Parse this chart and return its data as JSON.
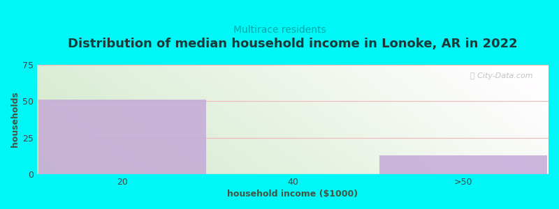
{
  "title": "Distribution of median household income in Lonoke, AR in 2022",
  "subtitle": "Multirace residents",
  "categories": [
    "20",
    "40",
    ">50"
  ],
  "values": [
    51,
    0,
    13
  ],
  "bar_color": "#c4aad8",
  "background_color": "#00f7f7",
  "plot_bg_gradient_left": "#d0e8c8",
  "plot_bg_gradient_right": "#f0f4f8",
  "title_color": "#1a3a3a",
  "subtitle_color": "#00aaaa",
  "ylabel": "households",
  "xlabel": "household income ($1000)",
  "ylim": [
    0,
    75
  ],
  "yticks": [
    0,
    25,
    50,
    75
  ],
  "watermark": "ⓘ City-Data.com",
  "title_fontsize": 13,
  "subtitle_fontsize": 10,
  "axis_label_fontsize": 9,
  "tick_fontsize": 9,
  "grid_color": "#f0b8b8"
}
